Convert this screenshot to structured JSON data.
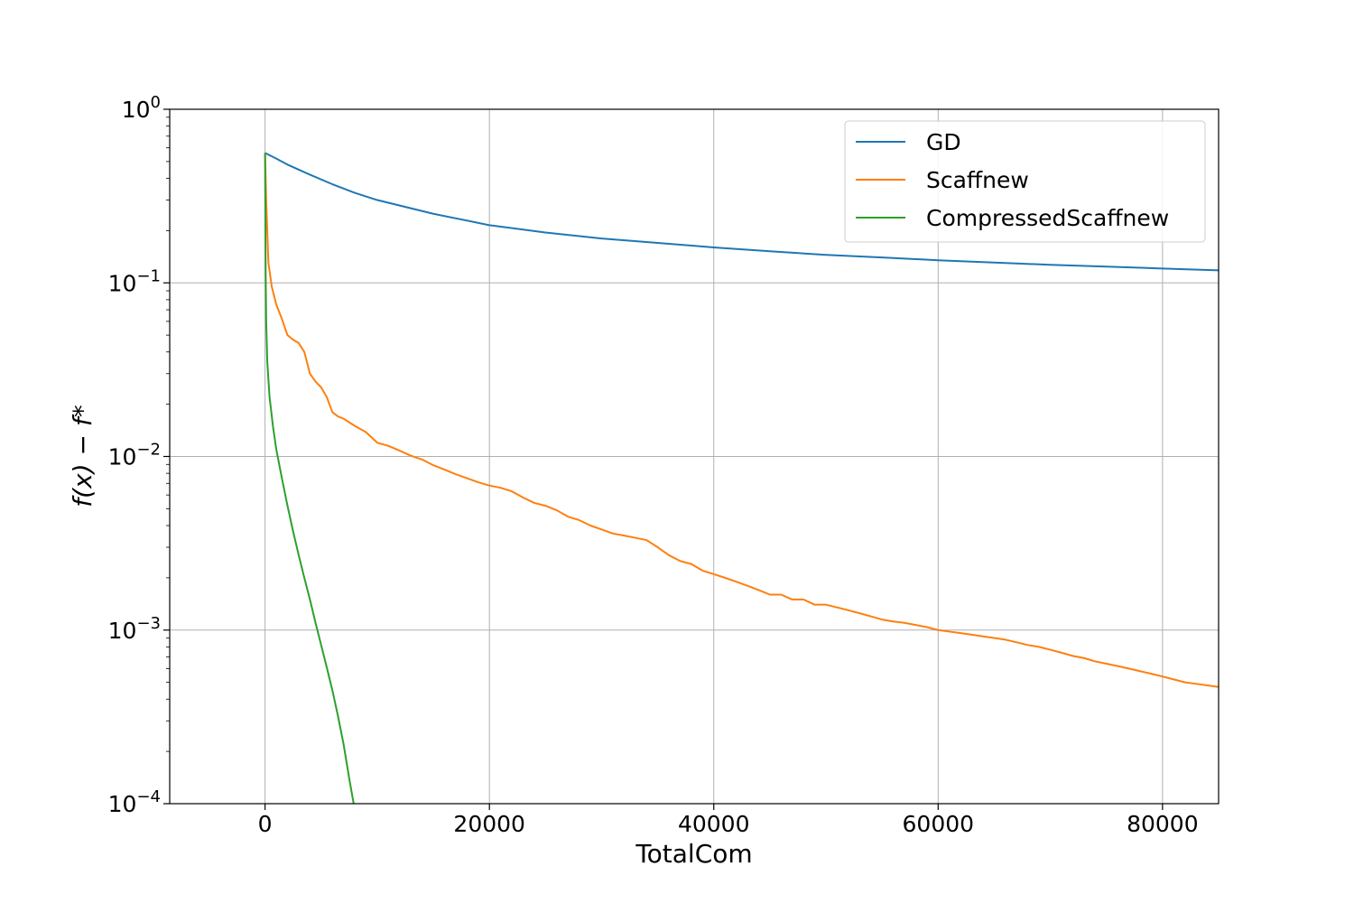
{
  "chart_data": {
    "type": "line",
    "xlabel": "TotalCom",
    "ylabel": "f(x) − f*",
    "yscale": "log",
    "xlim": [
      -8500,
      85000
    ],
    "ylim": [
      0.0001,
      1
    ],
    "xticks": [
      0,
      20000,
      40000,
      60000,
      80000
    ],
    "xtick_labels": [
      "0",
      "20000",
      "40000",
      "60000",
      "80000"
    ],
    "yticks": [
      1,
      0.1,
      0.01,
      0.001,
      0.0001
    ],
    "ytick_labels": [
      {
        "base": "10",
        "exp": "0"
      },
      {
        "base": "10",
        "exp": "−1"
      },
      {
        "base": "10",
        "exp": "−2"
      },
      {
        "base": "10",
        "exp": "−3"
      },
      {
        "base": "10",
        "exp": "−4"
      }
    ],
    "grid": true,
    "legend_position": "top-right",
    "series": [
      {
        "name": "GD",
        "color": "#1f77b4",
        "x": [
          0,
          1000,
          2000,
          4000,
          6000,
          8000,
          10000,
          15000,
          20000,
          25000,
          30000,
          35000,
          40000,
          45000,
          50000,
          55000,
          60000,
          65000,
          70000,
          75000,
          80000,
          85000
        ],
        "y": [
          0.56,
          0.52,
          0.48,
          0.42,
          0.37,
          0.33,
          0.3,
          0.25,
          0.215,
          0.195,
          0.18,
          0.17,
          0.16,
          0.152,
          0.145,
          0.14,
          0.135,
          0.131,
          0.127,
          0.124,
          0.121,
          0.118
        ]
      },
      {
        "name": "Scaffnew",
        "color": "#ff7f0e",
        "x": [
          0,
          100,
          300,
          600,
          1000,
          1500,
          2000,
          2500,
          3000,
          3500,
          4000,
          4500,
          5000,
          5500,
          6000,
          6500,
          7000,
          8000,
          9000,
          10000,
          11000,
          12000,
          13000,
          14000,
          15000,
          16000,
          17000,
          18000,
          19000,
          20000,
          21000,
          22000,
          23000,
          24000,
          25000,
          26000,
          27000,
          28000,
          29000,
          30000,
          31000,
          32000,
          33000,
          34000,
          35000,
          36000,
          37000,
          38000,
          39000,
          40000,
          41000,
          42000,
          43000,
          44000,
          45000,
          46000,
          47000,
          48000,
          49000,
          50000,
          51000,
          52000,
          53000,
          54000,
          55000,
          56000,
          57000,
          58000,
          59000,
          60000,
          61000,
          62000,
          63000,
          64000,
          65000,
          66000,
          67000,
          68000,
          69000,
          70000,
          71000,
          72000,
          73000,
          74000,
          75000,
          76000,
          77000,
          78000,
          79000,
          80000,
          81000,
          82000,
          83000,
          84000,
          85000
        ],
        "y": [
          0.56,
          0.3,
          0.13,
          0.095,
          0.075,
          0.062,
          0.05,
          0.047,
          0.045,
          0.04,
          0.03,
          0.027,
          0.025,
          0.022,
          0.018,
          0.017,
          0.0165,
          0.015,
          0.0138,
          0.012,
          0.0115,
          0.0108,
          0.0101,
          0.0096,
          0.0089,
          0.0084,
          0.0079,
          0.0075,
          0.0071,
          0.0068,
          0.0066,
          0.0063,
          0.0058,
          0.0054,
          0.0052,
          0.0049,
          0.0045,
          0.0043,
          0.004,
          0.0038,
          0.0036,
          0.0035,
          0.0034,
          0.0033,
          0.003,
          0.0027,
          0.0025,
          0.0024,
          0.0022,
          0.0021,
          0.002,
          0.0019,
          0.0018,
          0.0017,
          0.0016,
          0.0016,
          0.0015,
          0.0015,
          0.0014,
          0.0014,
          0.00135,
          0.0013,
          0.00125,
          0.0012,
          0.00115,
          0.00112,
          0.0011,
          0.00107,
          0.00104,
          0.001,
          0.00098,
          0.00096,
          0.00094,
          0.00092,
          0.0009,
          0.00088,
          0.00085,
          0.00082,
          0.0008,
          0.00077,
          0.00074,
          0.00071,
          0.00069,
          0.00066,
          0.00064,
          0.00062,
          0.0006,
          0.00058,
          0.00056,
          0.00054,
          0.00052,
          0.0005,
          0.00049,
          0.00048,
          0.00047
        ]
      },
      {
        "name": "CompressedScaffnew",
        "color": "#2ca02c",
        "x": [
          0,
          20,
          50,
          100,
          200,
          400,
          700,
          1000,
          1500,
          2000,
          2500,
          3000,
          3500,
          4000,
          4500,
          5000,
          5500,
          6000,
          6500,
          7000,
          7500,
          7900
        ],
        "y": [
          0.56,
          0.3,
          0.12,
          0.06,
          0.035,
          0.022,
          0.015,
          0.011,
          0.0075,
          0.0052,
          0.0037,
          0.0027,
          0.002,
          0.0015,
          0.0011,
          0.00082,
          0.00061,
          0.00045,
          0.00032,
          0.00022,
          0.00014,
          0.0001
        ]
      }
    ]
  }
}
